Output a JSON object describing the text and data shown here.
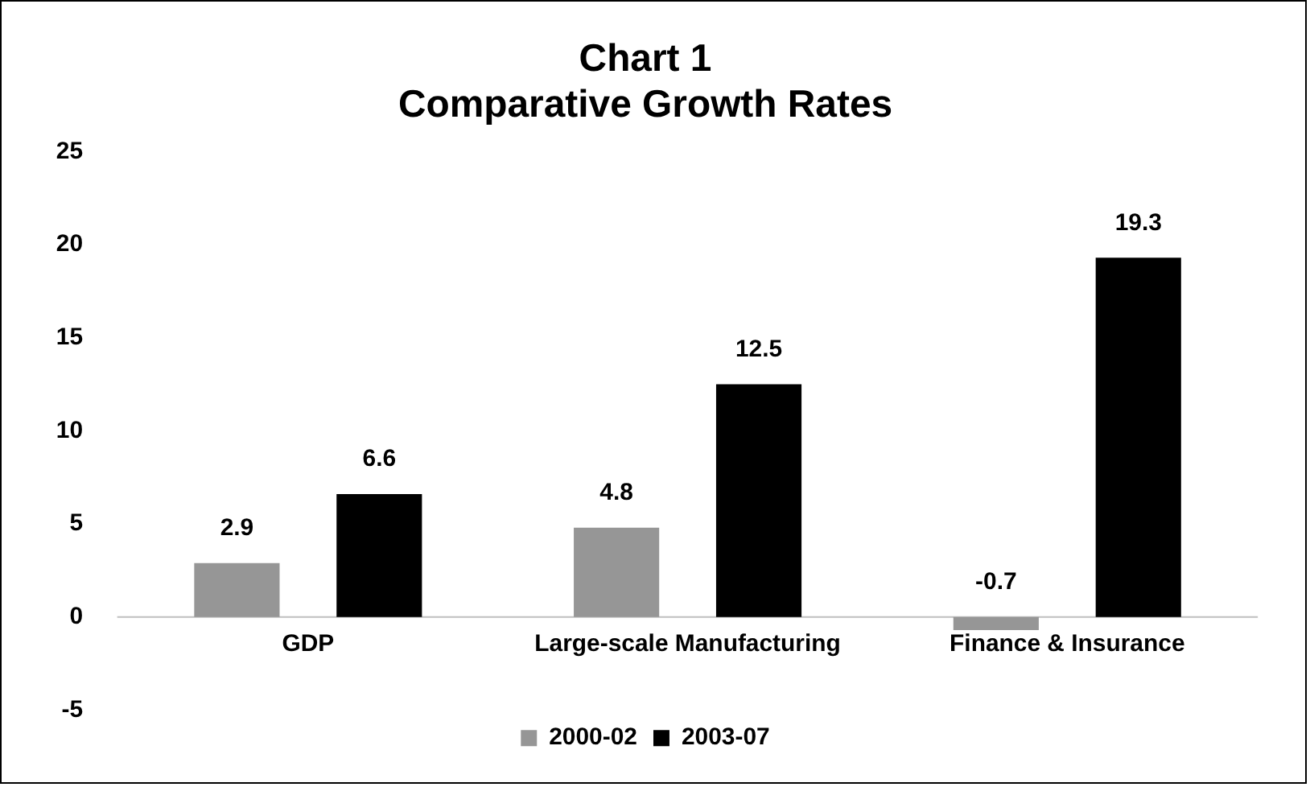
{
  "chart_data": {
    "type": "bar",
    "title": "Chart 1\nComparative Growth Rates",
    "categories": [
      "GDP",
      "Large-scale Manufacturing",
      "Finance & Insurance"
    ],
    "series": [
      {
        "name": "2000-02",
        "color": "#969696",
        "values": [
          2.9,
          4.8,
          -0.7
        ]
      },
      {
        "name": "2003-07",
        "color": "#000000",
        "values": [
          6.6,
          12.5,
          19.3
        ]
      }
    ],
    "ylim": [
      -5,
      25
    ],
    "yticks": [
      -5,
      0,
      5,
      10,
      15,
      20,
      25
    ],
    "grid": false,
    "legend": "bottom",
    "data_labels": true
  }
}
